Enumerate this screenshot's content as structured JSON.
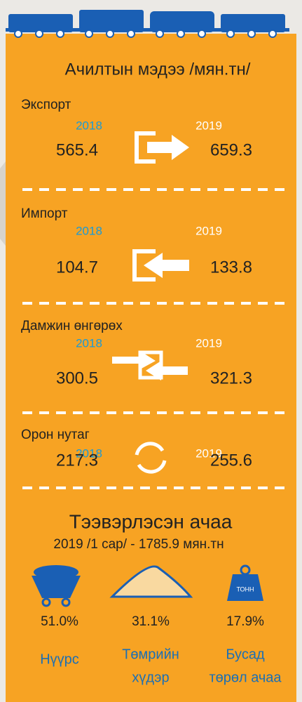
{
  "header": {
    "title": "Ачилтын мэдээ /мян.тн/"
  },
  "sections": [
    {
      "name": "Экспорт",
      "year_from": "2018",
      "year_to": "2019",
      "value_from": 565.4,
      "value_to": 659.3
    },
    {
      "name": "Импорт",
      "year_from": "2018",
      "year_to": "2019",
      "value_from": 104.7,
      "value_to": 133.8
    },
    {
      "name": "Дамжин өнгөрөх",
      "year_from": "2018",
      "year_to": "2019",
      "value_from": 300.5,
      "value_to": 321.3
    },
    {
      "name": "Орон нутаг",
      "year_from": "2018",
      "year_to": "2019",
      "value_from": 217.3,
      "value_to": 255.6
    }
  ],
  "cargo": {
    "title": "Тээвэрлэсэн ачаа",
    "subtitle": "2019 /1 сар/ - 1785.9 мян.тн",
    "weight_icon_label": "ТОНН",
    "items": [
      {
        "percent": "51.0%",
        "label": [
          "Нүүрс"
        ]
      },
      {
        "percent": "31.1%",
        "label": [
          "Төмрийн",
          "хүдэр"
        ]
      },
      {
        "percent": "17.9%",
        "label": [
          "Бусад",
          "төрөл ачаа"
        ]
      }
    ]
  }
}
